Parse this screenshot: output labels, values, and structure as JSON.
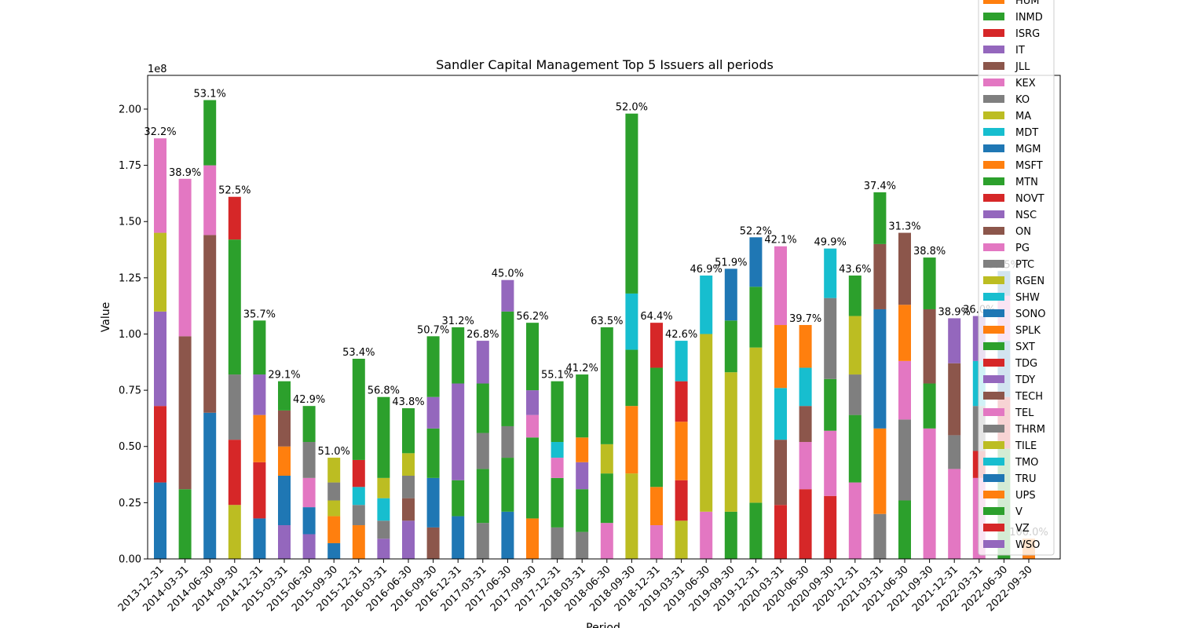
{
  "chart_data": {
    "type": "bar",
    "stacked": true,
    "title": "Sandler Capital Management Top 5 Issuers all periods",
    "xlabel": "Period",
    "ylabel": "Value",
    "y_scale_label": "1e8",
    "ylim": [
      0,
      2.15
    ],
    "yticks": [
      "0.00",
      "0.25",
      "0.50",
      "0.75",
      "1.00",
      "1.25",
      "1.50",
      "1.75",
      "2.00"
    ],
    "grid": false,
    "legend_location": "upper right (partially cut off at top)",
    "categories": [
      "2013-12-31",
      "2014-03-31",
      "2014-06-30",
      "2014-09-30",
      "2014-12-31",
      "2015-03-31",
      "2015-06-30",
      "2015-09-30",
      "2015-12-31",
      "2016-03-31",
      "2016-06-30",
      "2016-09-30",
      "2016-12-31",
      "2017-03-31",
      "2017-06-30",
      "2017-09-30",
      "2017-12-31",
      "2018-03-31",
      "2018-06-30",
      "2018-09-30",
      "2018-12-31",
      "2019-03-31",
      "2019-06-30",
      "2019-09-30",
      "2019-12-31",
      "2020-03-31",
      "2020-06-30",
      "2020-09-30",
      "2020-12-31",
      "2021-03-31",
      "2021-06-30",
      "2021-09-30",
      "2021-12-31",
      "2022-03-31",
      "2022-06-30",
      "2022-09-30"
    ],
    "totals_label": [
      "32.2%",
      "38.9%",
      "53.1%",
      "52.5%",
      "35.7%",
      "29.1%",
      "42.9%",
      "51.0%",
      "53.4%",
      "56.8%",
      "43.8%",
      "50.7%",
      "31.2%",
      "26.8%",
      "45.0%",
      "56.2%",
      "55.1%",
      "41.2%",
      "63.5%",
      "52.0%",
      "64.4%",
      "42.6%",
      "46.9%",
      "51.9%",
      "52.2%",
      "42.1%",
      "39.7%",
      "49.9%",
      "43.6%",
      "37.4%",
      "31.3%",
      "38.8%",
      "38.9%",
      "36.0%",
      "37.5%",
      "100.0%"
    ],
    "colors": {
      "blue": "#1f77b4",
      "orange": "#ff7f0e",
      "green": "#2ca02c",
      "red": "#d62728",
      "purple": "#9467bd",
      "brown": "#8c564b",
      "pink": "#e377c2",
      "gray": "#7f7f7f",
      "olive": "#bcbd22",
      "cyan": "#17becf"
    },
    "legend": [
      {
        "name": "HUM",
        "color": "orange"
      },
      {
        "name": "INMD",
        "color": "green"
      },
      {
        "name": "ISRG",
        "color": "red"
      },
      {
        "name": "IT",
        "color": "purple"
      },
      {
        "name": "JLL",
        "color": "brown"
      },
      {
        "name": "KEX",
        "color": "pink"
      },
      {
        "name": "KO",
        "color": "gray"
      },
      {
        "name": "MA",
        "color": "olive"
      },
      {
        "name": "MDT",
        "color": "cyan"
      },
      {
        "name": "MGM",
        "color": "blue"
      },
      {
        "name": "MSFT",
        "color": "orange"
      },
      {
        "name": "MTN",
        "color": "green"
      },
      {
        "name": "NOVT",
        "color": "red"
      },
      {
        "name": "NSC",
        "color": "purple"
      },
      {
        "name": "ON",
        "color": "brown"
      },
      {
        "name": "PG",
        "color": "pink"
      },
      {
        "name": "PTC",
        "color": "gray"
      },
      {
        "name": "RGEN",
        "color": "olive"
      },
      {
        "name": "SHW",
        "color": "cyan"
      },
      {
        "name": "SONO",
        "color": "blue"
      },
      {
        "name": "SPLK",
        "color": "orange"
      },
      {
        "name": "SXT",
        "color": "green"
      },
      {
        "name": "TDG",
        "color": "red"
      },
      {
        "name": "TDY",
        "color": "purple"
      },
      {
        "name": "TECH",
        "color": "brown"
      },
      {
        "name": "TEL",
        "color": "pink"
      },
      {
        "name": "THRM",
        "color": "gray"
      },
      {
        "name": "TILE",
        "color": "olive"
      },
      {
        "name": "TMO",
        "color": "cyan"
      },
      {
        "name": "TRU",
        "color": "blue"
      },
      {
        "name": "UPS",
        "color": "orange"
      },
      {
        "name": "V",
        "color": "green"
      },
      {
        "name": "VZ",
        "color": "red"
      },
      {
        "name": "WSO",
        "color": "purple"
      }
    ],
    "stacks": [
      [
        [
          "blue",
          0.34
        ],
        [
          "red",
          0.34
        ],
        [
          "purple",
          0.42
        ],
        [
          "olive",
          0.35
        ],
        [
          "pink",
          0.42
        ]
      ],
      [
        [
          "green",
          0.31
        ],
        [
          "brown",
          0.68
        ],
        [
          "pink",
          0.7
        ]
      ],
      [
        [
          "blue",
          0.65
        ],
        [
          "brown",
          0.79
        ],
        [
          "pink",
          0.31
        ],
        [
          "green",
          0.29
        ]
      ],
      [
        [
          "olive",
          0.24
        ],
        [
          "red",
          0.29
        ],
        [
          "gray",
          0.29
        ],
        [
          "green",
          0.6
        ],
        [
          "red",
          0.19
        ]
      ],
      [
        [
          "blue",
          0.18
        ],
        [
          "red",
          0.25
        ],
        [
          "orange",
          0.21
        ],
        [
          "purple",
          0.18
        ],
        [
          "green",
          0.24
        ]
      ],
      [
        [
          "purple",
          0.15
        ],
        [
          "blue",
          0.22
        ],
        [
          "orange",
          0.13
        ],
        [
          "brown",
          0.16
        ],
        [
          "green",
          0.13
        ]
      ],
      [
        [
          "purple",
          0.11
        ],
        [
          "blue",
          0.12
        ],
        [
          "pink",
          0.13
        ],
        [
          "gray",
          0.16
        ],
        [
          "green",
          0.16
        ]
      ],
      [
        [
          "blue",
          0.07
        ],
        [
          "orange",
          0.12
        ],
        [
          "olive",
          0.07
        ],
        [
          "gray",
          0.08
        ],
        [
          "olive",
          0.11
        ]
      ],
      [
        [
          "orange",
          0.15
        ],
        [
          "gray",
          0.09
        ],
        [
          "cyan",
          0.08
        ],
        [
          "red",
          0.12
        ],
        [
          "green",
          0.45
        ]
      ],
      [
        [
          "purple",
          0.09
        ],
        [
          "gray",
          0.08
        ],
        [
          "cyan",
          0.1
        ],
        [
          "olive",
          0.09
        ],
        [
          "green",
          0.36
        ]
      ],
      [
        [
          "purple",
          0.17
        ],
        [
          "brown",
          0.1
        ],
        [
          "gray",
          0.1
        ],
        [
          "olive",
          0.1
        ],
        [
          "green",
          0.2
        ]
      ],
      [
        [
          "brown",
          0.14
        ],
        [
          "blue",
          0.22
        ],
        [
          "green",
          0.22
        ],
        [
          "purple",
          0.14
        ],
        [
          "green",
          0.27
        ]
      ],
      [
        [
          "blue",
          0.19
        ],
        [
          "green",
          0.16
        ],
        [
          "purple",
          0.43
        ],
        [
          "green",
          0.25
        ]
      ],
      [
        [
          "gray",
          0.16
        ],
        [
          "green",
          0.24
        ],
        [
          "gray",
          0.16
        ],
        [
          "green",
          0.22
        ],
        [
          "purple",
          0.19
        ]
      ],
      [
        [
          "blue",
          0.21
        ],
        [
          "green",
          0.24
        ],
        [
          "gray",
          0.14
        ],
        [
          "green",
          0.51
        ],
        [
          "purple",
          0.14
        ]
      ],
      [
        [
          "orange",
          0.18
        ],
        [
          "green",
          0.36
        ],
        [
          "pink",
          0.1
        ],
        [
          "purple",
          0.11
        ],
        [
          "green",
          0.3
        ]
      ],
      [
        [
          "gray",
          0.14
        ],
        [
          "green",
          0.22
        ],
        [
          "pink",
          0.09
        ],
        [
          "cyan",
          0.07
        ],
        [
          "green",
          0.27
        ]
      ],
      [
        [
          "gray",
          0.12
        ],
        [
          "green",
          0.19
        ],
        [
          "purple",
          0.12
        ],
        [
          "orange",
          0.11
        ],
        [
          "green",
          0.28
        ]
      ],
      [
        [
          "pink",
          0.16
        ],
        [
          "green",
          0.22
        ],
        [
          "olive",
          0.13
        ],
        [
          "green",
          0.52
        ]
      ],
      [
        [
          "olive",
          0.38
        ],
        [
          "orange",
          0.3
        ],
        [
          "green",
          0.25
        ],
        [
          "cyan",
          0.25
        ],
        [
          "green",
          0.8
        ]
      ],
      [
        [
          "pink",
          0.15
        ],
        [
          "orange",
          0.17
        ],
        [
          "green",
          0.53
        ],
        [
          "red",
          0.2
        ]
      ],
      [
        [
          "olive",
          0.17
        ],
        [
          "red",
          0.18
        ],
        [
          "orange",
          0.26
        ],
        [
          "red",
          0.18
        ],
        [
          "cyan",
          0.18
        ]
      ],
      [
        [
          "pink",
          0.21
        ],
        [
          "olive",
          0.79
        ],
        [
          "cyan",
          0.26
        ]
      ],
      [
        [
          "green",
          0.21
        ],
        [
          "olive",
          0.62
        ],
        [
          "green",
          0.23
        ],
        [
          "blue",
          0.23
        ]
      ],
      [
        [
          "green",
          0.25
        ],
        [
          "olive",
          0.69
        ],
        [
          "green",
          0.27
        ],
        [
          "blue",
          0.22
        ]
      ],
      [
        [
          "red",
          0.24
        ],
        [
          "brown",
          0.29
        ],
        [
          "cyan",
          0.23
        ],
        [
          "orange",
          0.28
        ],
        [
          "pink",
          0.35
        ]
      ],
      [
        [
          "red",
          0.31
        ],
        [
          "pink",
          0.21
        ],
        [
          "brown",
          0.16
        ],
        [
          "cyan",
          0.17
        ],
        [
          "orange",
          0.19
        ]
      ],
      [
        [
          "red",
          0.28
        ],
        [
          "pink",
          0.29
        ],
        [
          "green",
          0.23
        ],
        [
          "gray",
          0.36
        ],
        [
          "cyan",
          0.22
        ]
      ],
      [
        [
          "pink",
          0.34
        ],
        [
          "green",
          0.3
        ],
        [
          "gray",
          0.18
        ],
        [
          "olive",
          0.26
        ],
        [
          "green",
          0.18
        ]
      ],
      [
        [
          "gray",
          0.2
        ],
        [
          "orange",
          0.38
        ],
        [
          "blue",
          0.53
        ],
        [
          "brown",
          0.29
        ],
        [
          "green",
          0.23
        ]
      ],
      [
        [
          "green",
          0.26
        ],
        [
          "gray",
          0.36
        ],
        [
          "pink",
          0.26
        ],
        [
          "orange",
          0.25
        ],
        [
          "brown",
          0.32
        ]
      ],
      [
        [
          "pink",
          0.58
        ],
        [
          "green",
          0.2
        ],
        [
          "brown",
          0.33
        ],
        [
          "green",
          0.23
        ]
      ],
      [
        [
          "pink",
          0.4
        ],
        [
          "gray",
          0.15
        ],
        [
          "brown",
          0.32
        ],
        [
          "purple",
          0.2
        ]
      ],
      [
        [
          "pink",
          0.36
        ],
        [
          "red",
          0.12
        ],
        [
          "gray",
          0.2
        ],
        [
          "cyan",
          0.2
        ],
        [
          "purple",
          0.2
        ]
      ],
      [
        [
          "green",
          0.49
        ],
        [
          "red",
          0.23
        ],
        [
          "blue",
          0.25
        ],
        [
          "pink",
          0.2
        ],
        [
          "blue",
          0.11
        ]
      ],
      [
        [
          "orange",
          0.09
        ]
      ]
    ]
  }
}
